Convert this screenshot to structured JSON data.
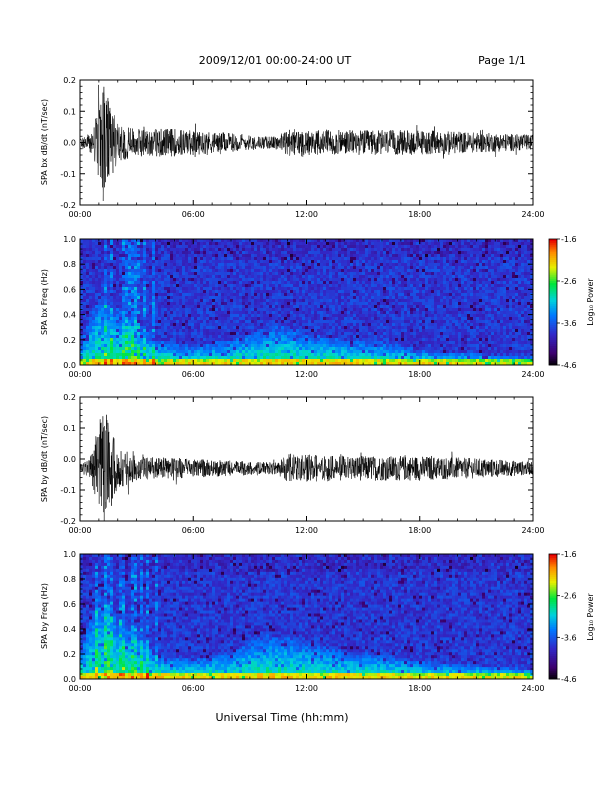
{
  "header": {
    "title": "2009/12/01  00:00-24:00 UT",
    "page": "Page 1/1"
  },
  "chart_data": [
    {
      "type": "line",
      "id": "bx-dbdt",
      "title": "",
      "ylabel": "SPA bx dB/dt (nT/sec)",
      "xlabel": "",
      "x_ticks": [
        "00:00",
        "06:00",
        "12:00",
        "18:00",
        "24:00"
      ],
      "xlim": [
        0,
        24
      ],
      "ylim": [
        -0.2,
        0.2
      ],
      "y_ticks": [
        "0.2",
        "0.1",
        "0.0",
        "-0.1",
        "-0.2"
      ],
      "baseline": 0.0,
      "envelope_hours": [
        0,
        0.5,
        0.9,
        1.2,
        1.6,
        2.0,
        3.0,
        4.0,
        5.0,
        6.0,
        8.0,
        9.5,
        10.5,
        11.0,
        12.0,
        14.0,
        16.0,
        18.0,
        20.0,
        22.0,
        24.0
      ],
      "envelope_amplitude": [
        0.015,
        0.03,
        0.09,
        0.2,
        0.12,
        0.06,
        0.045,
        0.045,
        0.045,
        0.04,
        0.03,
        0.02,
        0.02,
        0.045,
        0.04,
        0.04,
        0.04,
        0.04,
        0.035,
        0.03,
        0.025
      ]
    },
    {
      "type": "heatmap",
      "id": "bx-freq",
      "title": "",
      "ylabel": "SPA bx Freq (Hz)",
      "x_ticks": [
        "00:00",
        "06:00",
        "12:00",
        "18:00",
        "24:00"
      ],
      "xlim": [
        0,
        24
      ],
      "ylim": [
        0.0,
        1.0
      ],
      "y_ticks": [
        "1.0",
        "0.8",
        "0.6",
        "0.4",
        "0.2",
        "0.0"
      ],
      "colorbar": {
        "label": "Log₁₀ Power",
        "range": [
          -4.6,
          -1.6
        ],
        "ticks": [
          "-1.6",
          "-2.6",
          "-3.6",
          "-4.6"
        ],
        "colormap": "rainbow"
      },
      "activity_hours": [
        0,
        1,
        2,
        3,
        4,
        6,
        8,
        9,
        10,
        11,
        12,
        14,
        16,
        18,
        20,
        22,
        24
      ],
      "activity_height_hz": [
        0.15,
        0.55,
        0.45,
        0.35,
        0.2,
        0.15,
        0.2,
        0.25,
        0.3,
        0.3,
        0.25,
        0.2,
        0.18,
        0.12,
        0.1,
        0.08,
        0.06
      ]
    },
    {
      "type": "line",
      "id": "by-dbdt",
      "title": "",
      "ylabel": "SPA by dB/dt (nT/sec)",
      "xlabel": "",
      "x_ticks": [
        "00:00",
        "06:00",
        "12:00",
        "18:00",
        "24:00"
      ],
      "xlim": [
        0,
        24
      ],
      "ylim": [
        -0.2,
        0.2
      ],
      "y_ticks": [
        "0.2",
        "0.1",
        "0.0",
        "-0.1",
        "-0.2"
      ],
      "baseline": -0.03,
      "envelope_hours": [
        0,
        0.5,
        0.9,
        1.2,
        1.6,
        2.0,
        3.0,
        4.0,
        5.0,
        6.0,
        8.0,
        9.5,
        10.5,
        11.0,
        12.0,
        14.0,
        16.0,
        18.0,
        20.0,
        22.0,
        24.0
      ],
      "envelope_amplitude": [
        0.015,
        0.03,
        0.11,
        0.2,
        0.15,
        0.07,
        0.04,
        0.035,
        0.035,
        0.03,
        0.025,
        0.02,
        0.02,
        0.05,
        0.045,
        0.04,
        0.04,
        0.04,
        0.035,
        0.03,
        0.02
      ]
    },
    {
      "type": "heatmap",
      "id": "by-freq",
      "title": "",
      "ylabel": "SPA by Freq (Hz)",
      "xlabel": "Universal Time (hh:mm)",
      "x_ticks": [
        "00:00",
        "06:00",
        "12:00",
        "18:00",
        "24:00"
      ],
      "xlim": [
        0,
        24
      ],
      "ylim": [
        0.0,
        1.0
      ],
      "y_ticks": [
        "1.0",
        "0.8",
        "0.6",
        "0.4",
        "0.2",
        "0.0"
      ],
      "colorbar": {
        "label": "Log₁₀ Power",
        "range": [
          -4.6,
          -1.6
        ],
        "ticks": [
          "-1.6",
          "-2.6",
          "-3.6",
          "-4.6"
        ],
        "colormap": "rainbow"
      },
      "activity_hours": [
        0,
        1,
        2,
        3,
        4,
        6,
        8,
        9,
        10,
        11,
        12,
        14,
        16,
        18,
        20,
        22,
        24
      ],
      "activity_height_hz": [
        0.2,
        0.7,
        0.5,
        0.4,
        0.2,
        0.15,
        0.22,
        0.3,
        0.35,
        0.33,
        0.28,
        0.22,
        0.2,
        0.14,
        0.12,
        0.1,
        0.08
      ]
    }
  ],
  "footer": {
    "xlabel": "Universal Time (hh:mm)"
  },
  "colors": {
    "trace": "#000000",
    "axis": "#000000",
    "background": "#ffffff"
  }
}
